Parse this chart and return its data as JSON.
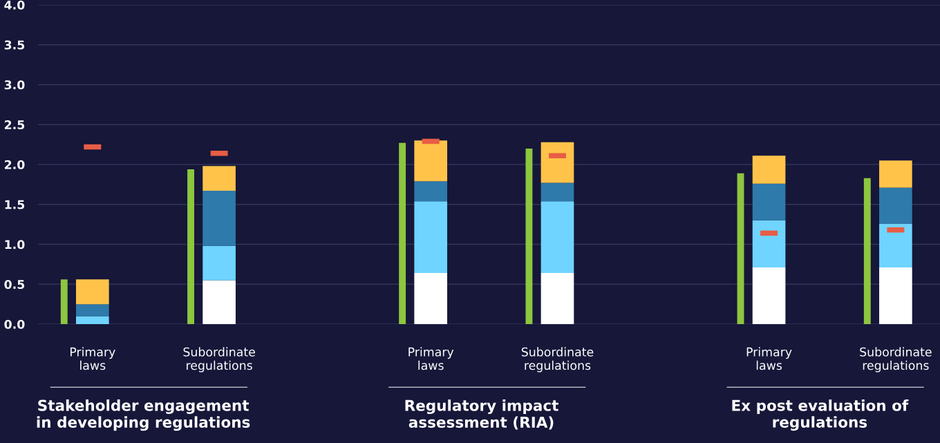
{
  "chart_data": {
    "type": "bar",
    "categories": [
      "Primary\nlaws",
      "Subordinate\nregulations",
      "Primary\nlaws",
      "Subordinate\nregulations",
      "Primary\nlaws",
      "Subordinate\nregulations"
    ],
    "series": [
      {
        "color": "#8dc63f",
        "values": [
          0.56,
          1.94,
          2.27,
          2.2,
          1.89,
          1.83
        ]
      },
      {
        "color": "#ffffff",
        "values": [
          null,
          0.55,
          0.64,
          0.64,
          0.71,
          0.71
        ],
        "base": [
          null,
          0,
          0,
          0,
          0,
          0
        ]
      },
      {
        "color": "#6fd4ff",
        "values": [
          0.1,
          0.43,
          0.9,
          0.9,
          0.59,
          0.55
        ],
        "base": [
          0,
          0.55,
          0.64,
          0.64,
          0.71,
          0.71
        ]
      },
      {
        "color": "#2e7aab",
        "values": [
          0.15,
          0.69,
          0.25,
          0.23,
          0.46,
          0.45
        ],
        "base": [
          0.1,
          0.98,
          1.54,
          1.54,
          1.3,
          1.26
        ]
      },
      {
        "color": "#ffc34a",
        "values": [
          0.31,
          0.31,
          0.51,
          0.51,
          0.35,
          0.34
        ],
        "base": [
          0.25,
          1.67,
          1.79,
          1.77,
          1.76,
          1.71
        ]
      },
      {
        "type": "scatter",
        "color": "#e85d45",
        "values": [
          2.22,
          2.14,
          2.29,
          2.11,
          1.14,
          1.18
        ]
      }
    ],
    "ylim": [
      0,
      4.0
    ],
    "yticks": [
      {
        "value": 0,
        "label": "0.0"
      },
      {
        "value": 0.5,
        "label": "0.5"
      },
      {
        "value": 1,
        "label": "1.0"
      },
      {
        "value": 1.5,
        "label": "1.5"
      },
      {
        "value": 2,
        "label": "2.0"
      },
      {
        "value": 2.5,
        "label": "2.5"
      },
      {
        "value": 3,
        "label": "3.0"
      },
      {
        "value": 3.5,
        "label": "3.5"
      },
      {
        "value": 4,
        "label": "4.0"
      }
    ],
    "grid": "y",
    "annotations": [
      "Stakeholder engagement\nin developing regulations",
      "Regulatory impact\nassessment (RIA)",
      "Ex post evaluation of\nregulations"
    ]
  }
}
